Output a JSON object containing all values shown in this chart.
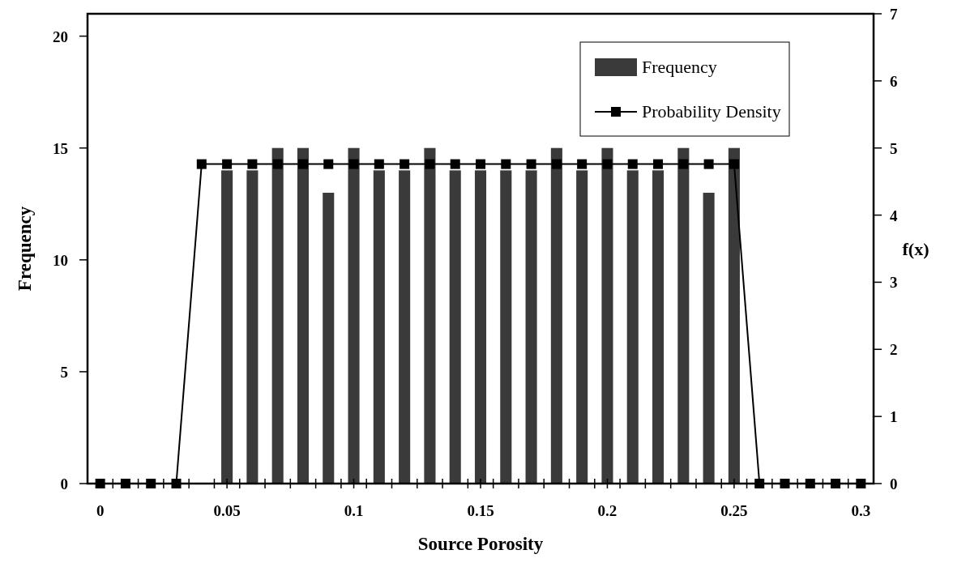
{
  "chart_data": {
    "type": "bar",
    "xlabel": "Source Porosity",
    "ylabel": "Frequency",
    "y2label": "f(x)",
    "xlim": [
      -0.005,
      0.305
    ],
    "xticks": [
      0,
      {
        "value": 0.005,
        "label": null
      },
      {
        "value": 0.015,
        "label": null
      },
      {
        "value": 0.025,
        "label": null
      },
      {
        "value": 0.035,
        "label": null
      },
      {
        "value": 0.045,
        "label": null
      },
      0.05,
      {
        "value": 0.055,
        "label": null
      },
      {
        "value": 0.065,
        "label": null
      },
      {
        "value": 0.075,
        "label": null
      },
      {
        "value": 0.085,
        "label": null
      },
      {
        "value": 0.095,
        "label": null
      },
      0.1,
      {
        "value": 0.105,
        "label": null
      },
      {
        "value": 0.115,
        "label": null
      },
      {
        "value": 0.125,
        "label": null
      },
      {
        "value": 0.135,
        "label": null
      },
      {
        "value": 0.145,
        "label": null
      },
      0.15,
      {
        "value": 0.155,
        "label": null
      },
      {
        "value": 0.165,
        "label": null
      },
      {
        "value": 0.175,
        "label": null
      },
      {
        "value": 0.185,
        "label": null
      },
      {
        "value": 0.195,
        "label": null
      },
      0.2,
      {
        "value": 0.205,
        "label": null
      },
      {
        "value": 0.215,
        "label": null
      },
      {
        "value": 0.225,
        "label": null
      },
      {
        "value": 0.235,
        "label": null
      },
      {
        "value": 0.245,
        "label": null
      },
      0.25,
      {
        "value": 0.255,
        "label": null
      },
      {
        "value": 0.265,
        "label": null
      },
      {
        "value": 0.275,
        "label": null
      },
      {
        "value": 0.285,
        "label": null
      },
      {
        "value": 0.295,
        "label": null
      },
      0.3
    ],
    "ylim": [
      0,
      21
    ],
    "yticks": [
      0,
      5,
      10,
      15,
      20
    ],
    "y2lim": [
      0,
      7
    ],
    "y2ticks": [
      0,
      1,
      2,
      3,
      4,
      5,
      6,
      7
    ],
    "legend": "top right",
    "grid": false,
    "series": [
      {
        "name": "Frequency",
        "color": "#3a3a3a",
        "x": [
          0.05,
          0.06,
          0.07,
          0.08,
          0.09,
          0.1,
          0.11,
          0.12,
          0.13,
          0.14,
          0.15,
          0.16,
          0.17,
          0.18,
          0.19,
          0.2,
          0.21,
          0.22,
          0.23,
          0.24,
          0.25
        ],
        "values": [
          14,
          14,
          15,
          15,
          13,
          15,
          14,
          14,
          15,
          14,
          14,
          14,
          14,
          15,
          14,
          15,
          14,
          14,
          15,
          13,
          15
        ]
      },
      {
        "name": "Probability Density",
        "type": "line",
        "axis": "y2",
        "color": "#000000",
        "marker": "square",
        "line_style": "solid",
        "x": [
          0,
          0.01,
          0.02,
          0.03,
          0.04,
          0.05,
          0.06,
          0.07,
          0.08,
          0.09,
          0.1,
          0.11,
          0.12,
          0.13,
          0.14,
          0.15,
          0.16,
          0.17,
          0.18,
          0.19,
          0.2,
          0.21,
          0.22,
          0.23,
          0.24,
          0.25,
          0.26,
          0.27,
          0.28,
          0.29,
          0.3
        ],
        "values": [
          0,
          0,
          0,
          0,
          4.76,
          4.76,
          4.76,
          4.76,
          4.76,
          4.76,
          4.76,
          4.76,
          4.76,
          4.76,
          4.76,
          4.76,
          4.76,
          4.76,
          4.76,
          4.76,
          4.76,
          4.76,
          4.76,
          4.76,
          4.76,
          4.76,
          0,
          0,
          0,
          0,
          0
        ]
      }
    ]
  }
}
